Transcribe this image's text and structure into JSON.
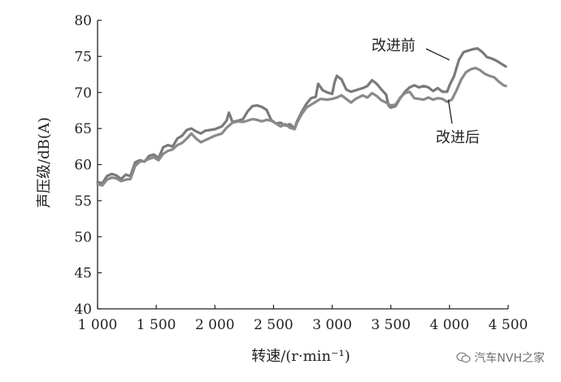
{
  "chart_data": {
    "type": "line",
    "xlabel": "转速/(r·min⁻¹)",
    "ylabel": "声压级/dB(A)",
    "xlim": [
      1000,
      4500
    ],
    "ylim": [
      40,
      80
    ],
    "xticks": [
      1000,
      1500,
      2000,
      2500,
      3000,
      3500,
      4000,
      4500
    ],
    "xtick_labels": [
      "1 000",
      "1 500",
      "2 000",
      "2 500",
      "3 000",
      "3 500",
      "4 000",
      "4 500"
    ],
    "yticks": [
      40,
      45,
      50,
      55,
      60,
      65,
      70,
      75,
      80
    ],
    "ytick_labels": [
      "40",
      "45",
      "50",
      "55",
      "60",
      "65",
      "70",
      "75",
      "80"
    ],
    "grid": false,
    "series": [
      {
        "name": "改进前",
        "color": "#7a7a7a",
        "points": [
          [
            1000,
            57.6
          ],
          [
            1040,
            57.4
          ],
          [
            1080,
            58.4
          ],
          [
            1120,
            58.7
          ],
          [
            1160,
            58.5
          ],
          [
            1200,
            58.0
          ],
          [
            1240,
            58.6
          ],
          [
            1280,
            58.4
          ],
          [
            1320,
            60.3
          ],
          [
            1360,
            60.6
          ],
          [
            1400,
            60.4
          ],
          [
            1440,
            61.2
          ],
          [
            1480,
            61.4
          ],
          [
            1520,
            60.9
          ],
          [
            1560,
            62.4
          ],
          [
            1600,
            62.7
          ],
          [
            1640,
            62.5
          ],
          [
            1680,
            63.6
          ],
          [
            1720,
            64.0
          ],
          [
            1760,
            64.8
          ],
          [
            1800,
            65.0
          ],
          [
            1840,
            64.6
          ],
          [
            1880,
            64.3
          ],
          [
            1920,
            64.7
          ],
          [
            2000,
            64.9
          ],
          [
            2060,
            65.3
          ],
          [
            2100,
            66.1
          ],
          [
            2120,
            67.2
          ],
          [
            2150,
            65.9
          ],
          [
            2200,
            66.1
          ],
          [
            2240,
            66.3
          ],
          [
            2280,
            67.4
          ],
          [
            2320,
            68.1
          ],
          [
            2360,
            68.2
          ],
          [
            2400,
            68.0
          ],
          [
            2440,
            67.6
          ],
          [
            2480,
            66.2
          ],
          [
            2520,
            65.7
          ],
          [
            2560,
            65.8
          ],
          [
            2600,
            65.4
          ],
          [
            2640,
            65.6
          ],
          [
            2680,
            65.0
          ],
          [
            2700,
            66.0
          ],
          [
            2740,
            67.3
          ],
          [
            2780,
            68.4
          ],
          [
            2820,
            69.2
          ],
          [
            2860,
            69.4
          ],
          [
            2880,
            71.2
          ],
          [
            2920,
            70.3
          ],
          [
            2960,
            70.0
          ],
          [
            3000,
            69.8
          ],
          [
            3020,
            71.4
          ],
          [
            3040,
            72.3
          ],
          [
            3080,
            71.8
          ],
          [
            3120,
            70.4
          ],
          [
            3160,
            70.1
          ],
          [
            3200,
            70.3
          ],
          [
            3260,
            70.6
          ],
          [
            3300,
            70.9
          ],
          [
            3340,
            71.7
          ],
          [
            3380,
            71.2
          ],
          [
            3420,
            70.4
          ],
          [
            3460,
            69.7
          ],
          [
            3480,
            68.2
          ],
          [
            3500,
            67.9
          ],
          [
            3540,
            68.1
          ],
          [
            3580,
            69.2
          ],
          [
            3620,
            70.1
          ],
          [
            3660,
            70.7
          ],
          [
            3700,
            71.0
          ],
          [
            3740,
            70.7
          ],
          [
            3780,
            70.9
          ],
          [
            3820,
            70.7
          ],
          [
            3860,
            70.2
          ],
          [
            3900,
            70.6
          ],
          [
            3940,
            70.1
          ],
          [
            3980,
            70.1
          ],
          [
            4000,
            71.0
          ],
          [
            4040,
            72.3
          ],
          [
            4080,
            74.5
          ],
          [
            4120,
            75.6
          ],
          [
            4160,
            75.8
          ],
          [
            4200,
            76.0
          ],
          [
            4240,
            76.1
          ],
          [
            4280,
            75.6
          ],
          [
            4320,
            74.9
          ],
          [
            4360,
            74.7
          ],
          [
            4400,
            74.4
          ],
          [
            4440,
            74.0
          ],
          [
            4480,
            73.6
          ]
        ]
      },
      {
        "name": "改进后",
        "color": "#8a8a8a",
        "points": [
          [
            1000,
            57.3
          ],
          [
            1040,
            57.1
          ],
          [
            1080,
            57.9
          ],
          [
            1120,
            58.2
          ],
          [
            1160,
            58.1
          ],
          [
            1200,
            57.7
          ],
          [
            1240,
            57.9
          ],
          [
            1280,
            58.0
          ],
          [
            1320,
            59.8
          ],
          [
            1360,
            60.4
          ],
          [
            1400,
            60.5
          ],
          [
            1440,
            60.8
          ],
          [
            1480,
            61.0
          ],
          [
            1520,
            60.6
          ],
          [
            1560,
            61.5
          ],
          [
            1600,
            61.9
          ],
          [
            1640,
            62.1
          ],
          [
            1680,
            62.7
          ],
          [
            1720,
            63.0
          ],
          [
            1760,
            63.6
          ],
          [
            1800,
            64.3
          ],
          [
            1840,
            63.6
          ],
          [
            1880,
            63.1
          ],
          [
            1920,
            63.4
          ],
          [
            2000,
            64.0
          ],
          [
            2060,
            64.3
          ],
          [
            2100,
            65.1
          ],
          [
            2150,
            65.8
          ],
          [
            2200,
            66.0
          ],
          [
            2240,
            65.9
          ],
          [
            2280,
            66.1
          ],
          [
            2320,
            66.3
          ],
          [
            2360,
            66.2
          ],
          [
            2400,
            66.0
          ],
          [
            2440,
            66.2
          ],
          [
            2480,
            66.1
          ],
          [
            2520,
            65.7
          ],
          [
            2560,
            65.3
          ],
          [
            2600,
            65.6
          ],
          [
            2640,
            65.1
          ],
          [
            2680,
            64.9
          ],
          [
            2700,
            65.8
          ],
          [
            2740,
            67.0
          ],
          [
            2780,
            67.9
          ],
          [
            2820,
            68.3
          ],
          [
            2860,
            68.7
          ],
          [
            2900,
            69.1
          ],
          [
            2960,
            69.0
          ],
          [
            3000,
            69.1
          ],
          [
            3040,
            69.3
          ],
          [
            3080,
            69.6
          ],
          [
            3120,
            69.1
          ],
          [
            3160,
            68.6
          ],
          [
            3200,
            69.1
          ],
          [
            3260,
            69.6
          ],
          [
            3300,
            69.3
          ],
          [
            3340,
            69.9
          ],
          [
            3380,
            69.5
          ],
          [
            3420,
            68.9
          ],
          [
            3460,
            68.6
          ],
          [
            3500,
            68.2
          ],
          [
            3540,
            68.3
          ],
          [
            3580,
            69.3
          ],
          [
            3620,
            69.9
          ],
          [
            3660,
            70.1
          ],
          [
            3700,
            69.2
          ],
          [
            3740,
            69.1
          ],
          [
            3780,
            69.0
          ],
          [
            3820,
            69.3
          ],
          [
            3860,
            69.0
          ],
          [
            3900,
            69.2
          ],
          [
            3940,
            69.1
          ],
          [
            3980,
            68.7
          ],
          [
            4020,
            69.0
          ],
          [
            4060,
            70.3
          ],
          [
            4100,
            71.8
          ],
          [
            4140,
            72.8
          ],
          [
            4180,
            73.2
          ],
          [
            4220,
            73.4
          ],
          [
            4260,
            73.1
          ],
          [
            4300,
            72.6
          ],
          [
            4340,
            72.3
          ],
          [
            4380,
            72.1
          ],
          [
            4420,
            71.5
          ],
          [
            4460,
            71.0
          ],
          [
            4480,
            70.9
          ]
        ]
      }
    ],
    "annotations": [
      {
        "text": "改进前",
        "series": 0,
        "at_x": 4000,
        "at_y": 74.5
      },
      {
        "text": "改进后",
        "series": 1,
        "at_x": 3990,
        "at_y": 69.0
      }
    ]
  },
  "watermark": {
    "text": "汽车NVH之家"
  }
}
